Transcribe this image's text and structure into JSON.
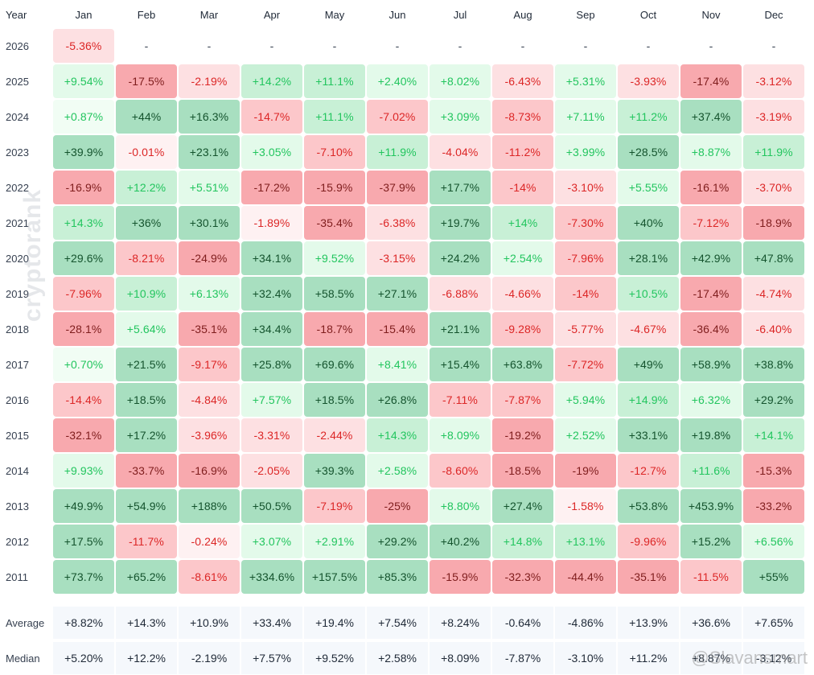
{
  "header": {
    "year_label": "Year",
    "months": [
      "Jan",
      "Feb",
      "Mar",
      "Apr",
      "May",
      "Jun",
      "Jul",
      "Aug",
      "Sep",
      "Oct",
      "Nov",
      "Dec"
    ]
  },
  "chart_data": {
    "type": "heatmap",
    "columns": [
      "Jan",
      "Feb",
      "Mar",
      "Apr",
      "May",
      "Jun",
      "Jul",
      "Aug",
      "Sep",
      "Oct",
      "Nov",
      "Dec"
    ],
    "rows": [
      {
        "year": "2026",
        "values": [
          "-5.36%",
          "-",
          "-",
          "-",
          "-",
          "-",
          "-",
          "-",
          "-",
          "-",
          "-",
          "-"
        ]
      },
      {
        "year": "2025",
        "values": [
          "+9.54%",
          "-17.5%",
          "-2.19%",
          "+14.2%",
          "+11.1%",
          "+2.40%",
          "+8.02%",
          "-6.43%",
          "+5.31%",
          "-3.93%",
          "-17.4%",
          "-3.12%"
        ]
      },
      {
        "year": "2024",
        "values": [
          "+0.87%",
          "+44%",
          "+16.3%",
          "-14.7%",
          "+11.1%",
          "-7.02%",
          "+3.09%",
          "-8.73%",
          "+7.11%",
          "+11.2%",
          "+37.4%",
          "-3.19%"
        ]
      },
      {
        "year": "2023",
        "values": [
          "+39.9%",
          "-0.01%",
          "+23.1%",
          "+3.05%",
          "-7.10%",
          "+11.9%",
          "-4.04%",
          "-11.2%",
          "+3.99%",
          "+28.5%",
          "+8.87%",
          "+11.9%"
        ]
      },
      {
        "year": "2022",
        "values": [
          "-16.9%",
          "+12.2%",
          "+5.51%",
          "-17.2%",
          "-15.9%",
          "-37.9%",
          "+17.7%",
          "-14%",
          "-3.10%",
          "+5.55%",
          "-16.1%",
          "-3.70%"
        ]
      },
      {
        "year": "2021",
        "values": [
          "+14.3%",
          "+36%",
          "+30.1%",
          "-1.89%",
          "-35.4%",
          "-6.38%",
          "+19.7%",
          "+14%",
          "-7.30%",
          "+40%",
          "-7.12%",
          "-18.9%"
        ]
      },
      {
        "year": "2020",
        "values": [
          "+29.6%",
          "-8.21%",
          "-24.9%",
          "+34.1%",
          "+9.52%",
          "-3.15%",
          "+24.2%",
          "+2.54%",
          "-7.96%",
          "+28.1%",
          "+42.9%",
          "+47.8%"
        ]
      },
      {
        "year": "2019",
        "values": [
          "-7.96%",
          "+10.9%",
          "+6.13%",
          "+32.4%",
          "+58.5%",
          "+27.1%",
          "-6.88%",
          "-4.66%",
          "-14%",
          "+10.5%",
          "-17.4%",
          "-4.74%"
        ]
      },
      {
        "year": "2018",
        "values": [
          "-28.1%",
          "+5.64%",
          "-35.1%",
          "+34.4%",
          "-18.7%",
          "-15.4%",
          "+21.1%",
          "-9.28%",
          "-5.77%",
          "-4.67%",
          "-36.4%",
          "-6.40%"
        ]
      },
      {
        "year": "2017",
        "values": [
          "+0.70%",
          "+21.5%",
          "-9.17%",
          "+25.8%",
          "+69.6%",
          "+8.41%",
          "+15.4%",
          "+63.8%",
          "-7.72%",
          "+49%",
          "+58.9%",
          "+38.8%"
        ]
      },
      {
        "year": "2016",
        "values": [
          "-14.4%",
          "+18.5%",
          "-4.84%",
          "+7.57%",
          "+18.5%",
          "+26.8%",
          "-7.11%",
          "-7.87%",
          "+5.94%",
          "+14.9%",
          "+6.32%",
          "+29.2%"
        ]
      },
      {
        "year": "2015",
        "values": [
          "-32.1%",
          "+17.2%",
          "-3.96%",
          "-3.31%",
          "-2.44%",
          "+14.3%",
          "+8.09%",
          "-19.2%",
          "+2.52%",
          "+33.1%",
          "+19.8%",
          "+14.1%"
        ]
      },
      {
        "year": "2014",
        "values": [
          "+9.93%",
          "-33.7%",
          "-16.9%",
          "-2.05%",
          "+39.3%",
          "+2.58%",
          "-8.60%",
          "-18.5%",
          "-19%",
          "-12.7%",
          "+11.6%",
          "-15.3%"
        ]
      },
      {
        "year": "2013",
        "values": [
          "+49.9%",
          "+54.9%",
          "+188%",
          "+50.5%",
          "-7.19%",
          "-25%",
          "+8.80%",
          "+27.4%",
          "-1.58%",
          "+53.8%",
          "+453.9%",
          "-33.2%"
        ]
      },
      {
        "year": "2012",
        "values": [
          "+17.5%",
          "-11.7%",
          "-0.24%",
          "+3.07%",
          "+2.91%",
          "+29.2%",
          "+40.2%",
          "+14.8%",
          "+13.1%",
          "-9.96%",
          "+15.2%",
          "+6.56%"
        ]
      },
      {
        "year": "2011",
        "values": [
          "+73.7%",
          "+65.2%",
          "-8.61%",
          "+334.6%",
          "+157.5%",
          "+85.3%",
          "-15.9%",
          "-32.3%",
          "-44.4%",
          "-35.1%",
          "-11.5%",
          "+55%"
        ]
      }
    ],
    "summary": [
      {
        "label": "Average",
        "values": [
          "+8.82%",
          "+14.3%",
          "+10.9%",
          "+33.4%",
          "+19.4%",
          "+7.54%",
          "+8.24%",
          "-0.64%",
          "-4.86%",
          "+13.9%",
          "+36.6%",
          "+7.65%"
        ]
      },
      {
        "label": "Median",
        "values": [
          "+5.20%",
          "+12.2%",
          "-2.19%",
          "+7.57%",
          "+9.52%",
          "+2.58%",
          "+8.09%",
          "-7.87%",
          "-3.10%",
          "+11.2%",
          "+8.87%",
          "-3.12%"
        ]
      }
    ]
  },
  "colors": {
    "pos_text_light": "#22c55e",
    "pos_text_dark": "#14532d",
    "neg_text_light": "#dc2626",
    "neg_text_dark": "#7f1d1d",
    "pos_strong": "#a8dfc0",
    "pos_mid": "#c8f0d6",
    "pos_light": "#e3faea",
    "pos_faint": "#f1fdf4",
    "neg_strong": "#f8a9ae",
    "neg_mid": "#fcc7ca",
    "neg_light": "#fde0e2",
    "neg_faint": "#fef1f2"
  },
  "watermark": "cryptorank",
  "signature": "@Slavansmart"
}
